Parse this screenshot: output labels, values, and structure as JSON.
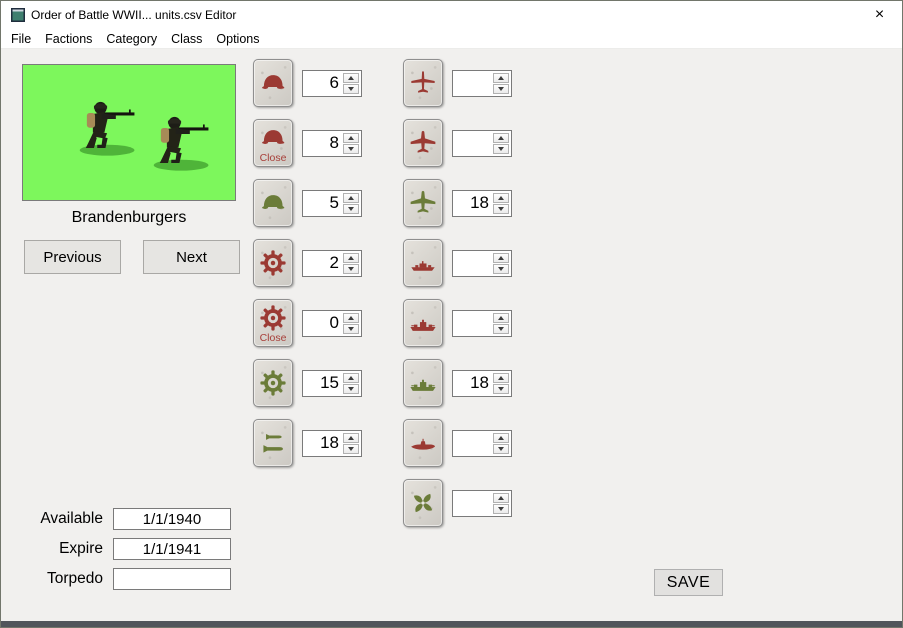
{
  "window": {
    "title": "Order of Battle WWII... units.csv Editor",
    "close_glyph": "×"
  },
  "menu": {
    "items": [
      "File",
      "Factions",
      "Category",
      "Class",
      "Options"
    ]
  },
  "unit": {
    "name": "Brandenburgers"
  },
  "buttons": {
    "previous": "Previous",
    "next": "Next",
    "save": "SAVE"
  },
  "close_text": "Close",
  "colors": {
    "red_glyph": "#9b3a33",
    "green_glyph": "#6b7c39",
    "image_background": "#7df75c",
    "bottom_strip": "#51555b"
  },
  "left_rows": [
    {
      "icon": "helmet",
      "color": "red",
      "value": "6",
      "close": false
    },
    {
      "icon": "helmet",
      "color": "red",
      "value": "8",
      "close": true
    },
    {
      "icon": "helmet",
      "color": "green",
      "value": "5",
      "close": false
    },
    {
      "icon": "gear",
      "color": "red",
      "value": "2",
      "close": false
    },
    {
      "icon": "gear",
      "color": "red",
      "value": "0",
      "close": true
    },
    {
      "icon": "gear",
      "color": "green",
      "value": "15",
      "close": false
    },
    {
      "icon": "bombs",
      "color": "green",
      "value": "18",
      "close": false
    }
  ],
  "right_rows": [
    {
      "icon": "plane-small",
      "color": "red",
      "value": "",
      "close": false
    },
    {
      "icon": "plane-big",
      "color": "red",
      "value": "",
      "close": false
    },
    {
      "icon": "plane-big",
      "color": "green",
      "value": "18",
      "close": false
    },
    {
      "icon": "ship-small",
      "color": "red",
      "value": "",
      "close": false
    },
    {
      "icon": "ship-big",
      "color": "red",
      "value": "",
      "close": false
    },
    {
      "icon": "ship-big",
      "color": "green",
      "value": "18",
      "close": false
    },
    {
      "icon": "submarine",
      "color": "red",
      "value": "",
      "close": false
    },
    {
      "icon": "propeller",
      "color": "green",
      "value": "",
      "close": false
    }
  ],
  "fields": [
    {
      "label": "Available",
      "value": "1/1/1940"
    },
    {
      "label": "Expire",
      "value": "1/1/1941"
    },
    {
      "label": "Torpedo",
      "value": ""
    }
  ]
}
